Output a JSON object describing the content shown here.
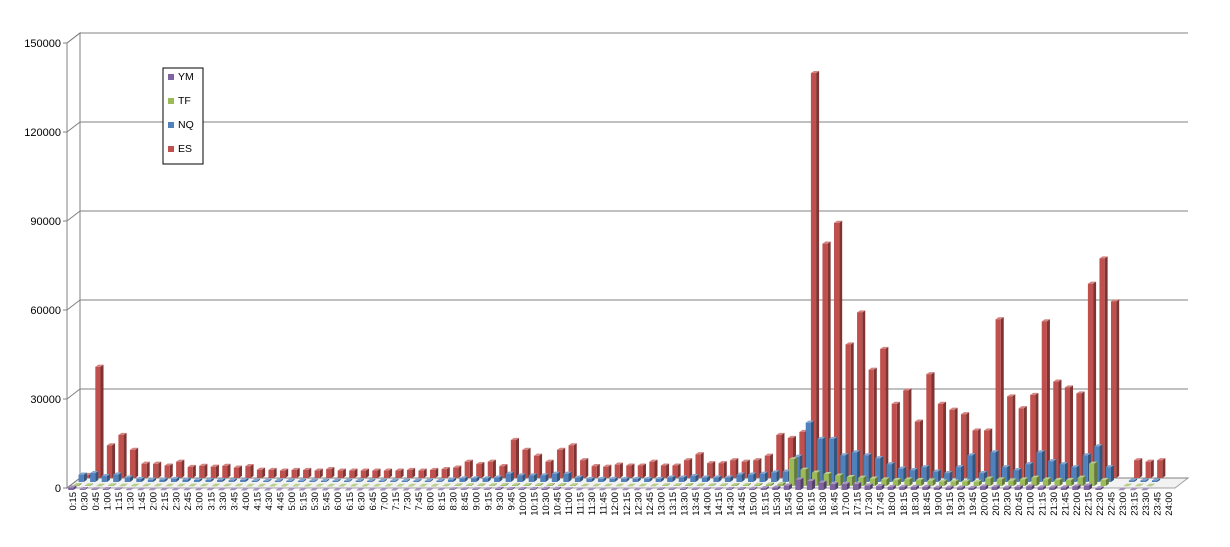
{
  "chart_data": {
    "type": "bar",
    "style": "3d-clustered-column",
    "title": "",
    "xlabel": "",
    "ylabel": "",
    "ylim": [
      0,
      150000
    ],
    "y_ticks": [
      "0",
      "30000",
      "60000",
      "90000",
      "120000",
      "150000"
    ],
    "grid": true,
    "legend_position": "top-left",
    "legend_entries": [
      "YM",
      "TF",
      "NQ",
      "ES"
    ],
    "categories": [
      "0:15",
      "0:30",
      "0:45",
      "1:00",
      "1:15",
      "1:30",
      "1:45",
      "2:00",
      "2:15",
      "2:30",
      "2:45",
      "3:00",
      "3:15",
      "3:30",
      "3:45",
      "4:00",
      "4:15",
      "4:30",
      "4:45",
      "5:00",
      "5:15",
      "5:30",
      "5:45",
      "6:00",
      "6:15",
      "6:30",
      "6:45",
      "7:00",
      "7:15",
      "7:30",
      "7:45",
      "8:00",
      "8:15",
      "8:30",
      "8:45",
      "9:00",
      "9:15",
      "9:30",
      "9:45",
      "10:00",
      "10:15",
      "10:30",
      "10:45",
      "11:00",
      "11:15",
      "11:30",
      "11:45",
      "12:00",
      "12:15",
      "12:30",
      "12:45",
      "13:00",
      "13:15",
      "13:30",
      "13:45",
      "14:00",
      "14:15",
      "14:30",
      "14:45",
      "15:00",
      "15:15",
      "15:30",
      "15:45",
      "16:00",
      "16:15",
      "16:30",
      "16:45",
      "17:00",
      "17:15",
      "17:30",
      "17:45",
      "18:00",
      "18:15",
      "18:30",
      "18:45",
      "19:00",
      "19:15",
      "19:30",
      "19:45",
      "20:00",
      "20:15",
      "20:30",
      "20:45",
      "21:00",
      "21:15",
      "21:30",
      "21:45",
      "22:00",
      "22:15",
      "22:30",
      "22:45",
      "23:00",
      "23:15",
      "23:30",
      "23:45",
      "24:00"
    ],
    "series": [
      {
        "name": "YM",
        "color": "#8064A2",
        "values": [
          800,
          300,
          200,
          300,
          200,
          100,
          100,
          100,
          100,
          100,
          100,
          100,
          100,
          100,
          100,
          50,
          50,
          50,
          50,
          50,
          50,
          50,
          50,
          50,
          50,
          50,
          50,
          50,
          50,
          50,
          50,
          50,
          100,
          200,
          200,
          200,
          200,
          400,
          300,
          300,
          300,
          400,
          400,
          200,
          100,
          100,
          100,
          100,
          100,
          100,
          100,
          200,
          200,
          300,
          200,
          200,
          200,
          300,
          300,
          400,
          600,
          800,
          1500,
          3500,
          3000,
          2500,
          2000,
          2000,
          2000,
          1500,
          1300,
          1000,
          1000,
          1000,
          1000,
          800,
          800,
          800,
          700,
          1200,
          1000,
          800,
          1000,
          1200,
          900,
          900,
          900,
          1200,
          1500,
          600,
          0,
          100,
          100,
          100,
          0,
          0
        ]
      },
      {
        "name": "TF",
        "color": "#9BBB59",
        "values": [
          300,
          200,
          100,
          200,
          100,
          100,
          100,
          100,
          100,
          100,
          100,
          100,
          100,
          100,
          100,
          50,
          50,
          50,
          50,
          50,
          50,
          50,
          50,
          50,
          50,
          50,
          50,
          50,
          50,
          50,
          50,
          50,
          100,
          200,
          200,
          200,
          200,
          300,
          300,
          300,
          300,
          300,
          300,
          200,
          100,
          100,
          100,
          100,
          100,
          100,
          100,
          200,
          200,
          300,
          200,
          200,
          200,
          300,
          300,
          400,
          500,
          700,
          9000,
          5500,
          4500,
          4000,
          3500,
          3000,
          2800,
          2500,
          2200,
          2000,
          2200,
          2000,
          1800,
          1500,
          1500,
          1500,
          1400,
          2500,
          2200,
          1800,
          2200,
          2800,
          2200,
          2000,
          2000,
          2800,
          7500,
          2000,
          0,
          100,
          100,
          100,
          0,
          0
        ]
      },
      {
        "name": "NQ",
        "color": "#4F81BD",
        "values": [
          2500,
          3000,
          2000,
          2500,
          1500,
          1000,
          800,
          800,
          1000,
          800,
          700,
          700,
          700,
          600,
          700,
          400,
          400,
          400,
          400,
          400,
          400,
          400,
          400,
          400,
          400,
          400,
          400,
          400,
          400,
          400,
          400,
          400,
          800,
          1200,
          1200,
          1200,
          1500,
          2800,
          2200,
          2200,
          2200,
          2800,
          2800,
          1500,
          1000,
          1000,
          1000,
          1000,
          1000,
          1000,
          1000,
          1500,
          1500,
          2000,
          1500,
          1500,
          1500,
          2500,
          2500,
          2800,
          3200,
          3500,
          8500,
          20000,
          14500,
          14500,
          9000,
          10000,
          9000,
          8000,
          6000,
          4500,
          4000,
          5000,
          3500,
          3000,
          5000,
          9000,
          3000,
          10000,
          5000,
          4000,
          6000,
          10000,
          7000,
          6000,
          5000,
          9000,
          12000,
          5000,
          0,
          500,
          500,
          500,
          0,
          0
        ]
      },
      {
        "name": "ES",
        "color": "#C0504D",
        "values": [
          1000,
          37500,
          11000,
          14500,
          9500,
          4800,
          4800,
          4200,
          5500,
          3700,
          4100,
          3800,
          4100,
          3500,
          4000,
          2800,
          2700,
          2500,
          2700,
          2700,
          2500,
          3000,
          2500,
          2500,
          2500,
          2500,
          2500,
          2500,
          2700,
          2500,
          2700,
          3000,
          3500,
          5500,
          4700,
          5500,
          4000,
          12800,
          9500,
          7500,
          5500,
          9500,
          11000,
          6000,
          4000,
          3800,
          4500,
          4200,
          4200,
          5500,
          4200,
          4200,
          6000,
          8000,
          5000,
          5000,
          6000,
          5500,
          6000,
          7500,
          14500,
          13500,
          15500,
          136500,
          79000,
          86000,
          45000,
          55800,
          36500,
          43500,
          25000,
          29500,
          19000,
          35000,
          25000,
          23000,
          21500,
          16000,
          16000,
          53500,
          27500,
          23500,
          28000,
          52800,
          32500,
          30500,
          28500,
          65500,
          74000,
          59500,
          0,
          6000,
          5500,
          6000,
          0,
          0
        ]
      }
    ]
  }
}
